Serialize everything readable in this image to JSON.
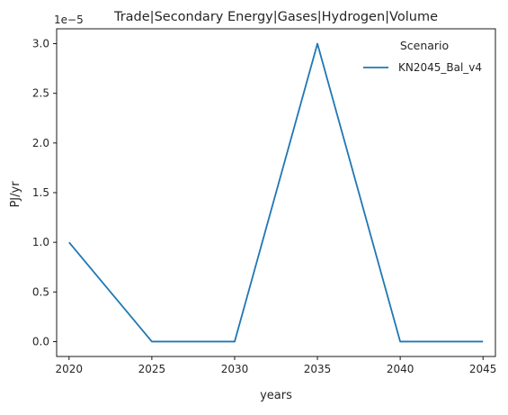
{
  "chart_data": {
    "type": "line",
    "title": "Trade|Secondary Energy|Gases|Hydrogen|Volume",
    "xlabel": "years",
    "ylabel": "PJ/yr",
    "y_offset_label": "1e−5",
    "x": [
      2020,
      2025,
      2030,
      2035,
      2040,
      2045
    ],
    "series": [
      {
        "name": "KN2045_Bal_v4",
        "color": "#1f77b4",
        "values": [
          1.0,
          0.0,
          0.0,
          3.0,
          0.0,
          0.0
        ]
      }
    ],
    "x_ticks": [
      "2020",
      "2025",
      "2030",
      "2035",
      "2040",
      "2045"
    ],
    "y_ticks": [
      "0.0",
      "0.5",
      "1.0",
      "1.5",
      "2.0",
      "2.5",
      "3.0"
    ],
    "xlim": [
      2019.25,
      2045.75
    ],
    "ylim": [
      -0.15,
      3.15
    ],
    "grid": false,
    "legend": {
      "title": "Scenario",
      "placement": "top-right"
    }
  }
}
